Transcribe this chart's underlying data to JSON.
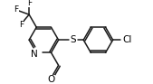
{
  "bg_color": "#ffffff",
  "line_color": "#1a1a1a",
  "line_width": 1.1,
  "font_size": 7.0,
  "figsize": [
    1.69,
    0.93
  ],
  "dpi": 100,
  "xlim": [
    0.0,
    1.69
  ],
  "ylim": [
    0.0,
    0.93
  ]
}
